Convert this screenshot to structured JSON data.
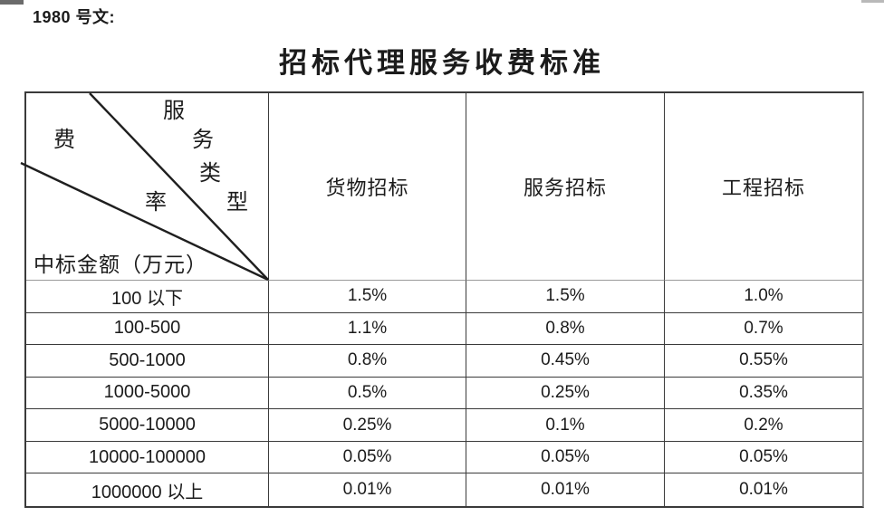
{
  "page": {
    "doc_number": "1980 号文:"
  },
  "title": "招标代理服务收费标准",
  "table": {
    "corner": {
      "fee_rate": [
        "费",
        "率"
      ],
      "service_type": [
        "服",
        "务",
        "类",
        "型"
      ],
      "row_axis_label": "中标金额（万元）"
    },
    "columns": [
      "货物招标",
      "服务招标",
      "工程招标"
    ],
    "rows": [
      {
        "label": "100 以下",
        "values": [
          "1.5%",
          "1.5%",
          "1.0%"
        ]
      },
      {
        "label": "100-500",
        "values": [
          "1.1%",
          "0.8%",
          "0.7%"
        ]
      },
      {
        "label": "500-1000",
        "values": [
          "0.8%",
          "0.45%",
          "0.55%"
        ]
      },
      {
        "label": "1000-5000",
        "values": [
          "0.5%",
          "0.25%",
          "0.35%"
        ]
      },
      {
        "label": "5000-10000",
        "values": [
          "0.25%",
          "0.1%",
          "0.2%"
        ]
      },
      {
        "label": "10000-100000",
        "values": [
          "0.05%",
          "0.05%",
          "0.05%"
        ]
      },
      {
        "label": "1000000 以上",
        "values": [
          "0.01%",
          "0.01%",
          "0.01%"
        ]
      }
    ]
  },
  "colors": {
    "text": "#1b1b1b",
    "border": "#3a3a3a",
    "header_separator": "#9a9a9a",
    "table_right_border": "#8f8f8f"
  }
}
